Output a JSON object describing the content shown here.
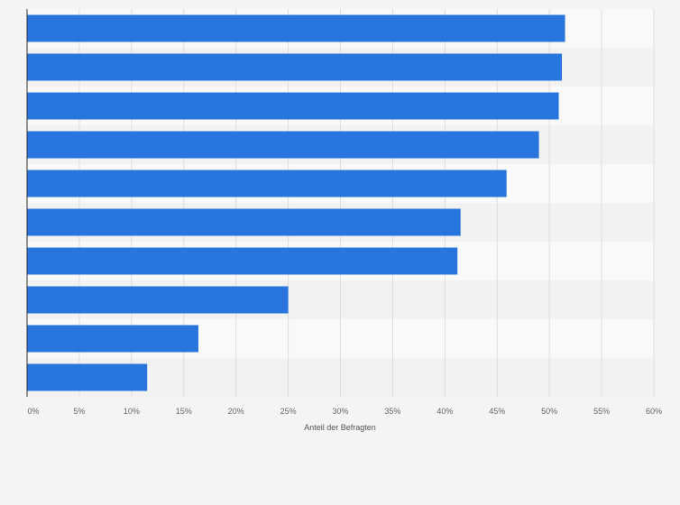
{
  "chart_data": {
    "type": "bar",
    "orientation": "horizontal",
    "categories": [
      "",
      "",
      "",
      "",
      "",
      "",
      "",
      "",
      "",
      ""
    ],
    "values": [
      51.5,
      51.2,
      50.9,
      49.0,
      45.9,
      41.5,
      41.2,
      25.0,
      16.4,
      11.5
    ],
    "xlabel": "Anteil der Befragten",
    "ylabel": "",
    "xlim": [
      0,
      60
    ],
    "x_ticks": [
      "0%",
      "5%",
      "10%",
      "15%",
      "20%",
      "25%",
      "30%",
      "35%",
      "40%",
      "45%",
      "50%",
      "55%",
      "60%"
    ],
    "grid": true,
    "legend": "none",
    "colors": {
      "bar": "#2876dd",
      "band_light": "#f9f9f9",
      "band_dark": "#f2f2f2",
      "grid": "#dddddd",
      "axis": "#333333",
      "page_background": "#f4f4f4"
    }
  }
}
